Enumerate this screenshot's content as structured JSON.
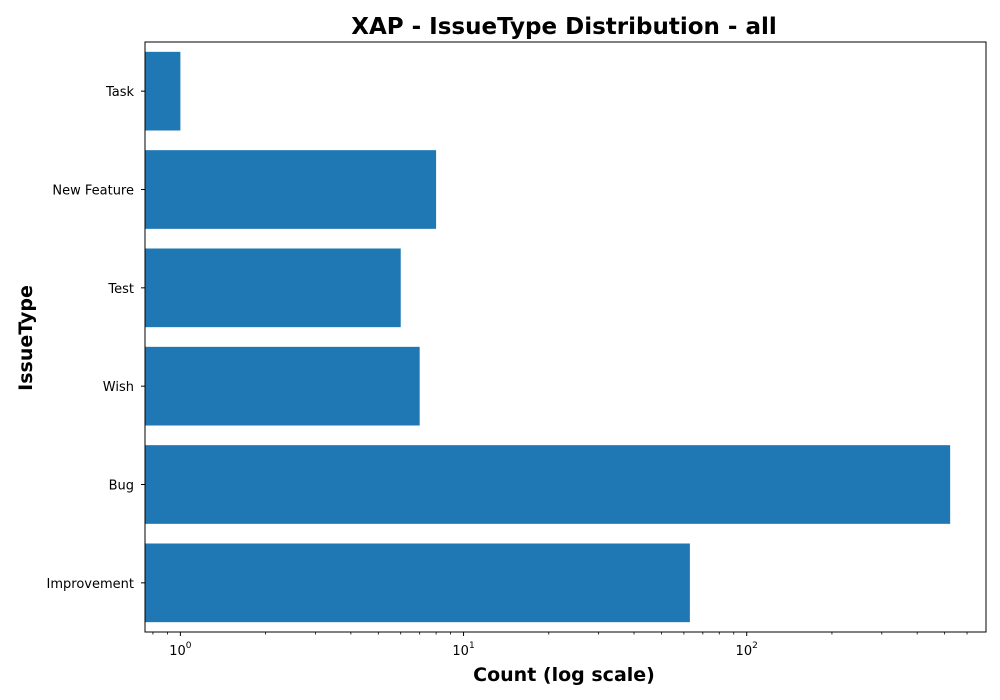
{
  "chart_data": {
    "type": "bar",
    "orientation": "horizontal",
    "title": "XAP - IssueType Distribution - all",
    "xlabel": "Count (log scale)",
    "ylabel": "IssueType",
    "xscale": "log",
    "xlim": [
      0.75,
      700
    ],
    "x_ticks": [
      {
        "base": "10",
        "exp": "0",
        "value": 1
      },
      {
        "base": "10",
        "exp": "1",
        "value": 10
      },
      {
        "base": "10",
        "exp": "2",
        "value": 100
      }
    ],
    "categories": [
      "Improvement",
      "Bug",
      "Wish",
      "Test",
      "New Feature",
      "Task"
    ],
    "values": [
      63,
      523,
      7,
      6,
      8,
      1
    ],
    "bar_color": "#1f77b4",
    "grid": false
  }
}
